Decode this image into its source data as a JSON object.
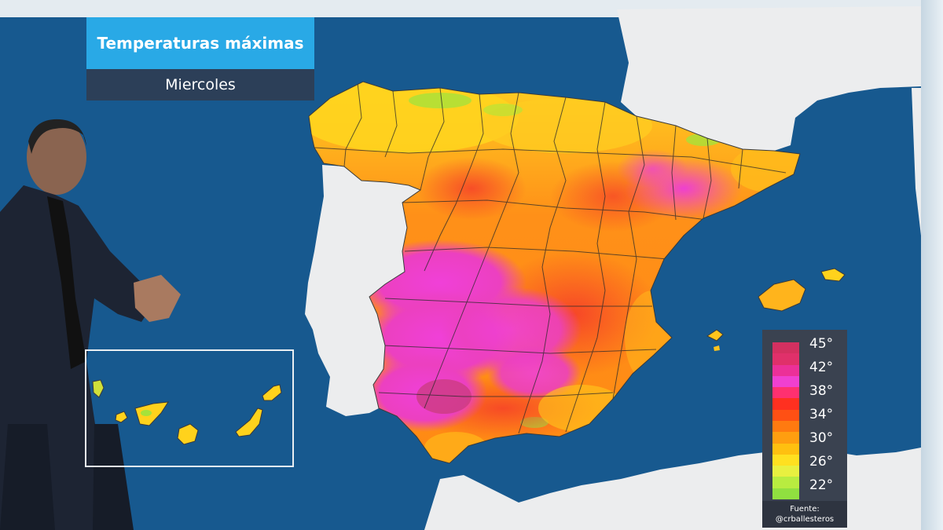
{
  "title": {
    "main": "Temperaturas máximas",
    "sub": "Miercoles"
  },
  "legend": {
    "labels": [
      "45°",
      "42°",
      "38°",
      "34°",
      "30°",
      "26°",
      "22°"
    ],
    "gradient": [
      "#d33060",
      "#e0306a",
      "#ec3098",
      "#f040d0",
      "#ff3070",
      "#ff3020",
      "#ff5014",
      "#ff7a10",
      "#ff9e10",
      "#ffc010",
      "#ffe020",
      "#e8f040",
      "#b8ec40",
      "#90e040"
    ]
  },
  "source": {
    "line1": "Fuente:",
    "line2": "@crballesteros"
  },
  "colors": {
    "sea": "#17598f",
    "land": "#ecedee",
    "hot_magenta": "#ec40d8",
    "red": "#f53a2a",
    "orange": "#ff8a14",
    "yellow": "#ffdc1c",
    "green": "#a6e23a"
  }
}
